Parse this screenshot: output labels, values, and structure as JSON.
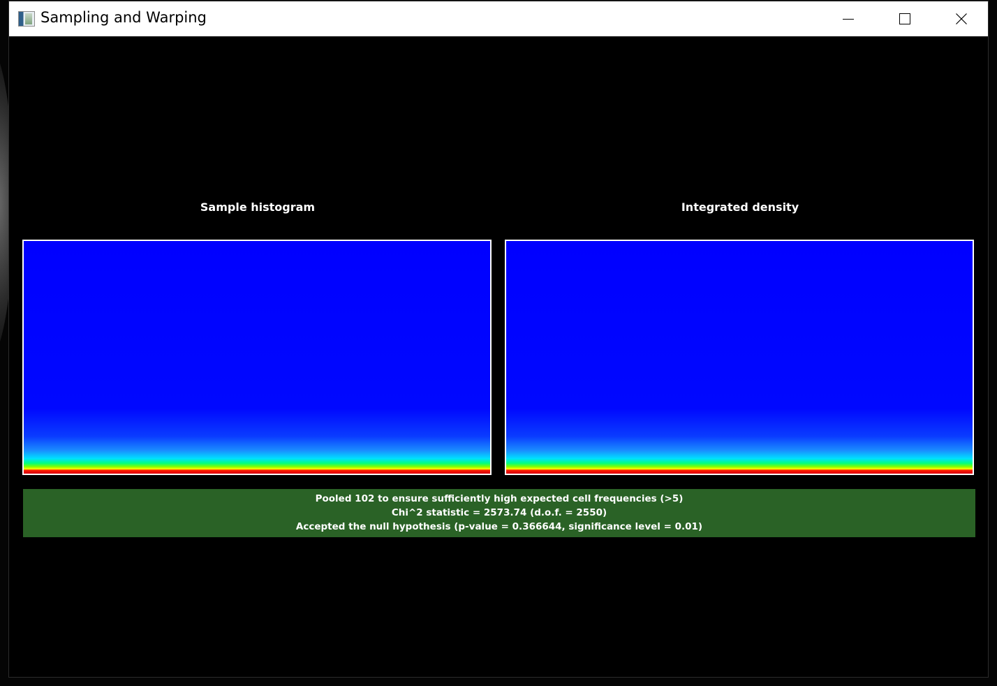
{
  "window": {
    "title": "Sampling and Warping",
    "icon": "app-icon"
  },
  "controls": {
    "minimize": "minimize-icon",
    "maximize": "maximize-icon",
    "close": "close-icon"
  },
  "panels": {
    "left_title": "Sample histogram",
    "right_title": "Integrated density"
  },
  "colors": {
    "plot_background": "#0000ff",
    "status_background": "#2a6226"
  },
  "status": {
    "line1": "Pooled 102 to ensure sufficiently high expected cell frequencies (>5)",
    "line2": "Chi^2 statistic = 2573.74 (d.o.f. = 2550)",
    "line3": "Accepted the null hypothesis (p-value = 0.366644, significance level = 0.01)"
  }
}
